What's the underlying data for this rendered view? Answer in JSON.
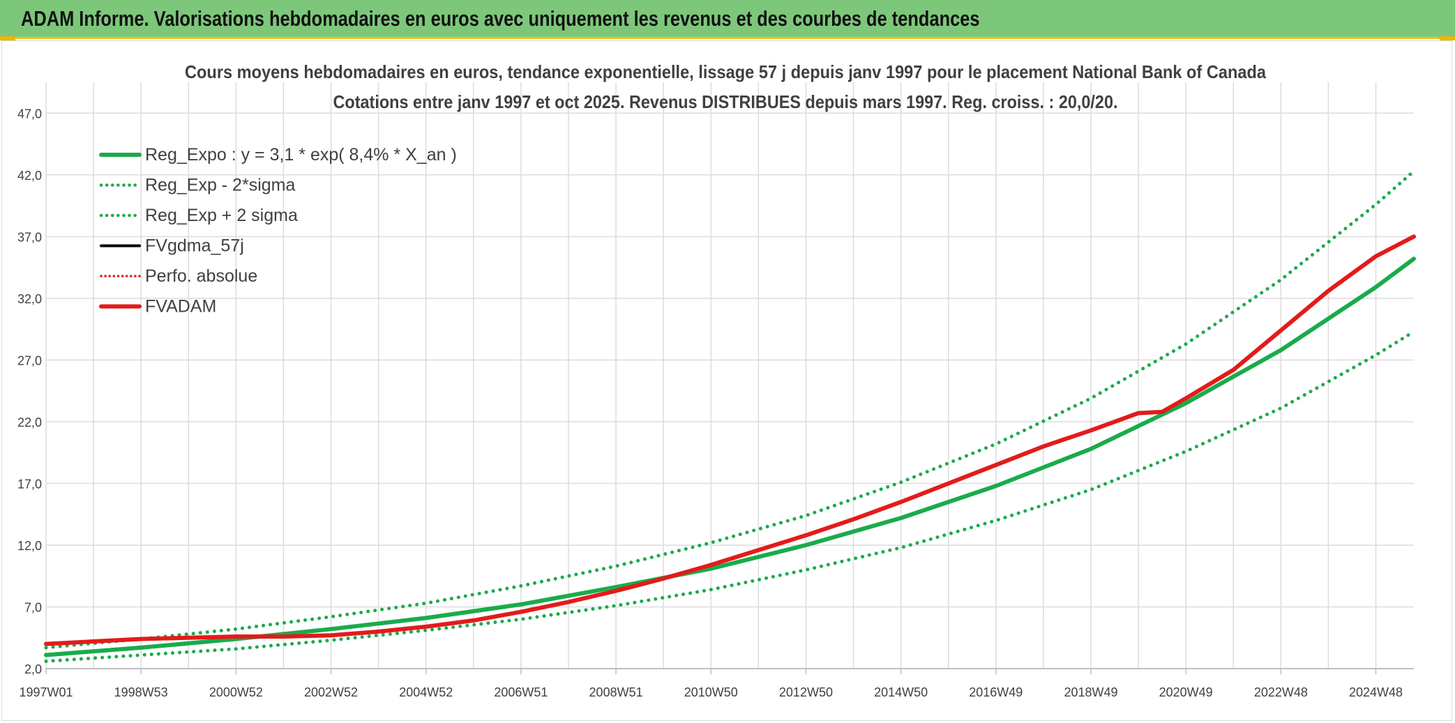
{
  "banner": {
    "title": "ADAM Informe. Valorisations hebdomadaires en euros avec uniquement les revenus et des courbes de tendances"
  },
  "chart_data": {
    "type": "line",
    "title": "Cours moyens hebdomadaires en euros, tendance exponentielle, lissage 57 j depuis janv 1997 pour le placement National Bank of Canada",
    "subtitle": "Cotations entre janv 1997 et oct 2025. Revenus DISTRIBUES depuis mars 1997. Reg. croiss. : 20,0/20.",
    "xlabel": "",
    "ylabel": "",
    "xlim": [
      1997.0,
      2025.8
    ],
    "ylim": [
      2.0,
      49.5
    ],
    "yticks": [
      "2,0",
      "7,0",
      "12,0",
      "17,0",
      "22,0",
      "27,0",
      "32,0",
      "37,0",
      "42,0",
      "47,0"
    ],
    "ytick_values": [
      2,
      7,
      12,
      17,
      22,
      27,
      32,
      37,
      42,
      47
    ],
    "xticks": [
      "1997W01",
      "1998W53",
      "2000W52",
      "2002W52",
      "2004W52",
      "2006W51",
      "2008W51",
      "2010W50",
      "2012W50",
      "2014W50",
      "2016W49",
      "2018W49",
      "2020W49",
      "2022W48",
      "2024W48"
    ],
    "xtick_values": [
      1997.0,
      1999.0,
      2001.0,
      2003.0,
      2005.0,
      2007.0,
      2009.0,
      2011.0,
      2013.0,
      2015.0,
      2017.0,
      2019.0,
      2021.0,
      2023.0,
      2025.0
    ],
    "grid": true,
    "legend_position": "top-left",
    "series": [
      {
        "name": "Reg_Expo : y = 3,1 * exp( 8,4% *  X_an )",
        "color": "#1aab4b",
        "style": "solid",
        "x": [
          1997.0,
          1999.0,
          2001.0,
          2003.0,
          2005.0,
          2007.0,
          2009.0,
          2011.0,
          2013.0,
          2015.0,
          2017.0,
          2019.0,
          2021.0,
          2023.0,
          2025.0,
          2025.8
        ],
        "values": [
          3.1,
          3.7,
          4.4,
          5.2,
          6.1,
          7.2,
          8.6,
          10.1,
          12.0,
          14.2,
          16.8,
          19.8,
          23.5,
          27.8,
          32.9,
          35.2
        ]
      },
      {
        "name": "Reg_Exp - 2*sigma",
        "color": "#1aab4b",
        "style": "dotted",
        "x": [
          1997.0,
          1999.0,
          2001.0,
          2003.0,
          2005.0,
          2007.0,
          2009.0,
          2011.0,
          2013.0,
          2015.0,
          2017.0,
          2019.0,
          2021.0,
          2023.0,
          2025.0,
          2025.8
        ],
        "values": [
          2.6,
          3.1,
          3.6,
          4.3,
          5.1,
          6.0,
          7.1,
          8.4,
          10.0,
          11.8,
          14.0,
          16.5,
          19.6,
          23.1,
          27.4,
          29.3
        ]
      },
      {
        "name": "Reg_Exp + 2 sigma",
        "color": "#1aab4b",
        "style": "dotted",
        "x": [
          1997.0,
          1999.0,
          2001.0,
          2003.0,
          2005.0,
          2007.0,
          2009.0,
          2011.0,
          2013.0,
          2015.0,
          2017.0,
          2019.0,
          2021.0,
          2023.0,
          2025.0,
          2025.8
        ],
        "values": [
          3.7,
          4.4,
          5.2,
          6.2,
          7.3,
          8.7,
          10.3,
          12.2,
          14.4,
          17.1,
          20.2,
          23.9,
          28.3,
          33.5,
          39.6,
          42.3
        ]
      },
      {
        "name": "FVgdma_57j",
        "color": "#000000",
        "style": "solid",
        "x": [],
        "values": []
      },
      {
        "name": "Perfo. absolue",
        "color": "#e31b1b",
        "style": "dotted",
        "x": [],
        "values": []
      },
      {
        "name": "FVADAM",
        "color": "#e31b1b",
        "style": "solid",
        "x": [
          1997.0,
          1998.0,
          1999.0,
          2000.0,
          2001.0,
          2002.0,
          2003.0,
          2004.0,
          2005.0,
          2006.0,
          2007.0,
          2008.0,
          2009.0,
          2010.0,
          2011.0,
          2012.0,
          2013.0,
          2014.0,
          2015.0,
          2016.0,
          2017.0,
          2018.0,
          2019.0,
          2020.0,
          2020.5,
          2021.0,
          2022.0,
          2023.0,
          2024.0,
          2025.0,
          2025.8
        ],
        "values": [
          4.0,
          4.2,
          4.4,
          4.5,
          4.6,
          4.6,
          4.7,
          5.0,
          5.4,
          5.9,
          6.6,
          7.4,
          8.3,
          9.3,
          10.4,
          11.6,
          12.8,
          14.1,
          15.5,
          17.0,
          18.5,
          20.0,
          21.3,
          22.7,
          22.8,
          23.9,
          26.2,
          29.4,
          32.6,
          35.4,
          37.0
        ]
      }
    ]
  }
}
